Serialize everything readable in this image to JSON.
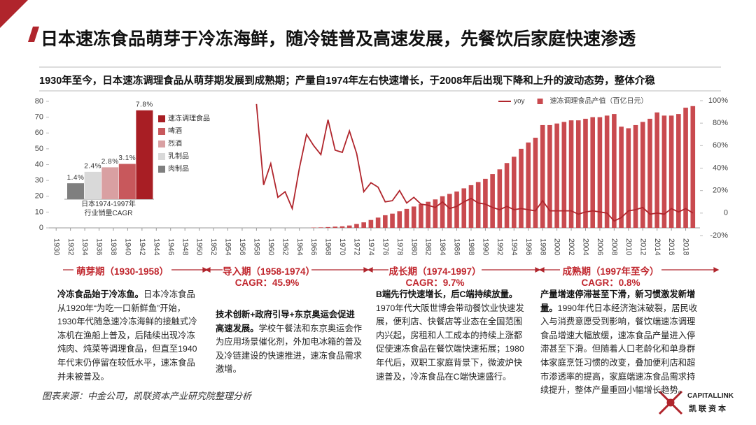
{
  "header": {
    "title": "日本速冻食品萌芽于冷冻海鲜，随冷链普及高速发展，先餐饮后家庭快速渗透",
    "subtitle": "1930年至今，日本速冻调理食品从萌芽期发展到成熟期；产量自1974年左右快速增长，于2008年后出现下降和上升的波动态势，整体介稳"
  },
  "chart_data": [
    {
      "type": "combo",
      "legend": "top-right",
      "x": [
        1958,
        1959,
        1960,
        1961,
        1962,
        1963,
        1964,
        1965,
        1966,
        1967,
        1968,
        1969,
        1970,
        1971,
        1972,
        1973,
        1974,
        1975,
        1976,
        1977,
        1978,
        1979,
        1980,
        1981,
        1982,
        1983,
        1984,
        1985,
        1986,
        1987,
        1988,
        1989,
        1990,
        1991,
        1992,
        1993,
        1994,
        1995,
        1996,
        1997,
        1998,
        1999,
        2000,
        2001,
        2002,
        2003,
        2004,
        2005,
        2006,
        2007,
        2008,
        2009,
        2010,
        2011,
        2012,
        2013,
        2014,
        2015,
        2016,
        2017,
        2018,
        2019
      ],
      "series": [
        {
          "name": "yoy",
          "type": "line",
          "axis": "y2",
          "color": "#b0252c",
          "values": [
            97,
            25,
            44,
            14,
            19,
            4,
            40,
            70,
            60,
            52,
            83,
            56,
            54,
            73,
            53,
            19,
            27,
            23,
            10,
            11,
            20,
            9,
            14,
            8,
            7,
            5,
            10,
            4,
            6,
            10,
            13,
            9,
            8,
            5,
            3,
            6,
            3,
            4,
            3,
            2,
            11,
            2,
            2,
            2,
            2,
            -1,
            1,
            2,
            1,
            0,
            -7,
            -4,
            2,
            3,
            5,
            -1,
            0,
            -1,
            4,
            1,
            4,
            0
          ]
        },
        {
          "name": "速冻调理食品产值（百亿日元）",
          "type": "bar",
          "axis": "y",
          "color": "#c94a4f",
          "values": [
            null,
            null,
            null,
            null,
            null,
            null,
            null,
            null,
            0.2,
            0.3,
            0.5,
            0.8,
            1,
            1.5,
            2.5,
            3.5,
            5,
            6.5,
            8,
            9,
            10.5,
            12,
            13.5,
            15,
            16.5,
            18,
            20,
            21.5,
            23,
            25,
            27,
            29,
            31,
            34,
            37,
            41,
            45,
            50,
            54,
            57,
            65,
            65,
            66,
            67,
            68,
            68,
            69,
            70,
            70,
            71,
            72,
            64,
            63,
            65,
            67,
            69,
            73,
            71,
            71,
            72,
            76,
            77
          ]
        }
      ],
      "xlim": [
        1929,
        2020
      ],
      "xticks": [
        1930,
        1932,
        1934,
        1936,
        1938,
        1940,
        1942,
        1944,
        1946,
        1948,
        1950,
        1952,
        1954,
        1956,
        1958,
        1960,
        1962,
        1964,
        1966,
        1968,
        1970,
        1972,
        1974,
        1976,
        1978,
        1980,
        1982,
        1984,
        1986,
        1988,
        1990,
        1992,
        1994,
        1996,
        1998,
        2000,
        2002,
        2004,
        2006,
        2008,
        2010,
        2012,
        2014,
        2016,
        2018
      ],
      "ylim": [
        0,
        80
      ],
      "yticks": [
        0,
        10,
        20,
        30,
        40,
        50,
        60,
        70,
        80
      ],
      "y2lim": [
        -20,
        100
      ],
      "y2ticks": [
        {
          "value": -20,
          "label": "-20%"
        },
        {
          "value": 0,
          "label": "0"
        },
        {
          "value": 20,
          "label": "20%"
        },
        {
          "value": 40,
          "label": "40%"
        },
        {
          "value": 60,
          "label": "60%"
        },
        {
          "value": 80,
          "label": "80%"
        },
        {
          "value": 100,
          "label": "100%"
        }
      ]
    },
    {
      "type": "bar",
      "caption": "日本1974-1997年行业销量CAGR",
      "categories": [
        "肉制品",
        "乳制品",
        "烈酒",
        "啤酒",
        "速冻调理食品"
      ],
      "values": [
        1.4,
        2.4,
        2.8,
        3.1,
        7.8
      ],
      "value_labels": [
        "1.4%",
        "2.4%",
        "2.8%",
        "3.1%",
        "7.8%"
      ],
      "colors": [
        "#7f7f7f",
        "#d9d9d9",
        "#d9a0a2",
        "#c8585c",
        "#a81e24"
      ]
    }
  ],
  "phases": [
    {
      "title": "萌芽期（1930-1958）",
      "lead": "冷冻食品始于冷冻鱼。",
      "body": "日本冷冻食品从1920年“为吃一口新鲜鱼”开始，1930年代随急速冷冻海鲜的接触式冷冻机在渔船上普及，后陆续出现冷冻炖肉、炖菜等调理食品，但直至1940年代末仍停留在较低水平，速冻食品并未被普及。"
    },
    {
      "title": "导入期（1958-1974）",
      "cagr": "CAGR：45.9%",
      "lead": "技术创新+政府引导+东京奥运会促进高速发展。",
      "body": "学校午餐法和东京奥运会作为应用场景催化剂，外加电冰箱的普及及冷链建设的快速推进，速冻食品需求激增。"
    },
    {
      "title": "成长期（1974-1997）",
      "cagr": "CAGR：9.7%",
      "lead": "B端先行快速增长，后C端持续放量。",
      "body": "1970年代大阪世博会带动餐饮业快速发展，便利店、快餐店等业态在全国范围内兴起，房租和人工成本的持续上涨都促使速冻食品在餐饮端快速拓展；1980年代后，双职工家庭背景下，微波炉快速普及，冷冻食品在C端快速盛行。"
    },
    {
      "title": "成熟期（1997年至今）",
      "cagr": "CAGR：0.8%",
      "lead": "产量增速停滞甚至下滑，新习惯激发新增量。",
      "body": "1990年代日本经济泡沫破裂，居民收入与消费意愿受到影响，餐饮端速冻调理食品增速大幅放缓，速冻食品产量进入停滞甚至下滑。但随着人口老龄化和单身群体家庭烹饪习惯的改变，叠加便利店和超市渗透率的提高，家庭端速冻食品需求持续提升，整体产量重回小幅增长趋势。"
    }
  ],
  "source": "图表来源：中金公司，凯联资本产业研究院整理分析",
  "logo": {
    "name": "CAPITALLINK",
    "cn": "凯联资本"
  }
}
